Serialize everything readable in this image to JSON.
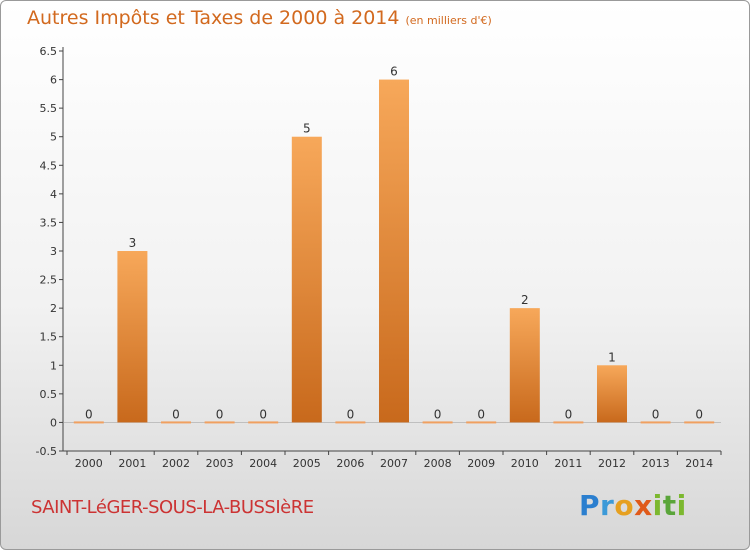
{
  "header": {
    "title": "Autres Impôts et Taxes de 2000 à 2014",
    "unit": "(en milliers d'€)"
  },
  "footer": {
    "town": "SAINT-LéGER-SOUS-LA-BUSSIèRE",
    "brand": "Proxiti"
  },
  "chart_data": {
    "type": "bar",
    "title": "Autres Impôts et Taxes de 2000 à 2014",
    "subtitle": "(en milliers d'€)",
    "categories": [
      "2000",
      "2001",
      "2002",
      "2003",
      "2004",
      "2005",
      "2006",
      "2007",
      "2008",
      "2009",
      "2010",
      "2011",
      "2012",
      "2013",
      "2014"
    ],
    "values": [
      0,
      3,
      0,
      0,
      0,
      5,
      0,
      6,
      0,
      0,
      2,
      0,
      1,
      0,
      0
    ],
    "ylim": [
      -0.5,
      6.5
    ],
    "yticks": [
      -0.5,
      0,
      0.5,
      1,
      1.5,
      2,
      2.5,
      3,
      3.5,
      4,
      4.5,
      5,
      5.5,
      6,
      6.5
    ],
    "grid": false,
    "legend": "none",
    "bar_color": "#f0922f"
  }
}
